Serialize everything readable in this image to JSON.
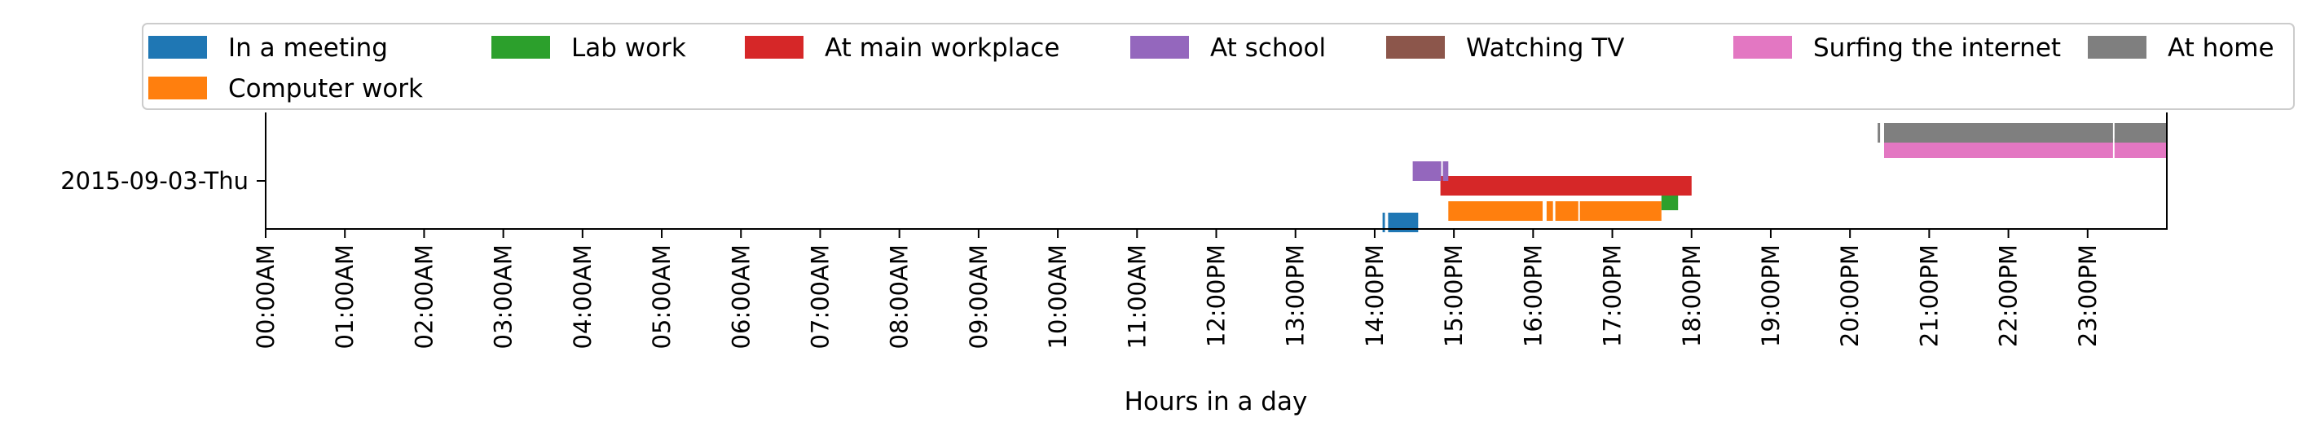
{
  "chart_data": {
    "type": "timeline",
    "xlabel": "Hours in a day",
    "ylabel": "",
    "xlim": [
      0,
      24
    ],
    "grid": false,
    "legend_placement": "top",
    "day_label": "2015-09-03-Thu",
    "x_tick_labels": [
      "00:00AM",
      "01:00AM",
      "02:00AM",
      "03:00AM",
      "04:00AM",
      "05:00AM",
      "06:00AM",
      "07:00AM",
      "08:00AM",
      "09:00AM",
      "10:00AM",
      "11:00AM",
      "12:00PM",
      "13:00PM",
      "14:00PM",
      "15:00PM",
      "16:00PM",
      "17:00PM",
      "18:00PM",
      "19:00PM",
      "20:00PM",
      "21:00PM",
      "22:00PM",
      "23:00PM"
    ],
    "series": [
      {
        "name": "In a meeting",
        "color": "#1f77b4",
        "row": 0,
        "intervals": [
          [
            14.1,
            14.13
          ],
          [
            14.17,
            14.55
          ]
        ]
      },
      {
        "name": "Computer work",
        "color": "#ff7f0e",
        "row": 1,
        "intervals": [
          [
            14.93,
            16.12
          ],
          [
            16.17,
            16.25
          ],
          [
            16.28,
            16.57
          ],
          [
            16.59,
            17.62
          ]
        ]
      },
      {
        "name": "Lab work",
        "color": "#2ca02c",
        "row": 2,
        "intervals": [
          [
            17.62,
            17.83
          ]
        ]
      },
      {
        "name": "At main workplace",
        "color": "#d62728",
        "row": 3,
        "intervals": [
          [
            14.83,
            18.0
          ]
        ]
      },
      {
        "name": "At school",
        "color": "#9467bd",
        "row": 4,
        "intervals": [
          [
            14.48,
            14.84
          ],
          [
            14.86,
            14.93
          ]
        ]
      },
      {
        "name": "Watching TV",
        "color": "#8c564b",
        "row": 5,
        "intervals": []
      },
      {
        "name": "Surfing the internet",
        "color": "#e377c2",
        "row": 6,
        "intervals": [
          [
            20.43,
            23.32
          ],
          [
            23.34,
            24.0
          ]
        ]
      },
      {
        "name": "At home",
        "color": "#7f7f7f",
        "row": 7,
        "intervals": [
          [
            20.35,
            20.38
          ],
          [
            20.43,
            23.32
          ],
          [
            23.34,
            24.0
          ]
        ]
      }
    ]
  }
}
